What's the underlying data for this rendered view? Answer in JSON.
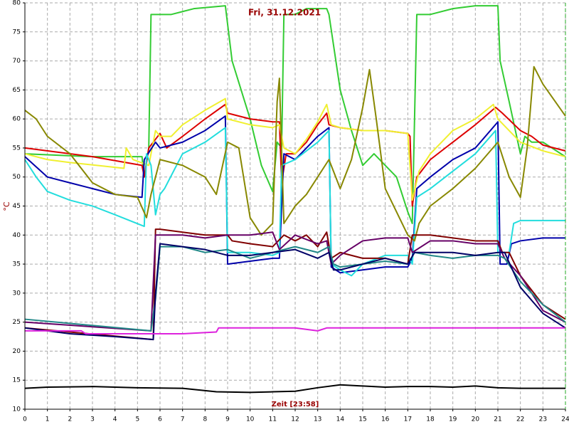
{
  "chart_data": {
    "type": "line",
    "title": "Fri, 31.12.2021",
    "x_label": "Zeit [23:58]",
    "y_label": "°C",
    "xlim": [
      0,
      24
    ],
    "ylim": [
      10,
      80
    ],
    "xticks": [
      0,
      1,
      2,
      3,
      4,
      5,
      6,
      7,
      8,
      9,
      10,
      11,
      12,
      13,
      14,
      15,
      16,
      17,
      18,
      19,
      20,
      21,
      22,
      23,
      24
    ],
    "yticks": [
      10,
      15,
      20,
      25,
      30,
      35,
      40,
      45,
      50,
      55,
      60,
      65,
      70,
      75,
      80
    ],
    "grid": true,
    "series": [
      {
        "color": "#33cc33",
        "x": [
          0,
          3,
          5.2,
          5.3,
          5.5,
          5.6,
          6.5,
          7.5,
          8.9,
          9.2,
          10,
          10.5,
          11,
          11.2,
          11.4,
          11.5,
          12,
          12.5,
          13.4,
          13.5,
          14,
          14.5,
          15,
          15.5,
          16,
          16.5,
          17,
          17.2,
          17.4,
          18,
          19,
          20,
          21,
          21.1,
          21.5,
          22,
          22.2,
          22.5,
          23,
          24
        ],
        "values": [
          54,
          53.5,
          53.5,
          50,
          55,
          78,
          78,
          79,
          79.5,
          70,
          60,
          52,
          47.5,
          56,
          55,
          78,
          78,
          79,
          79,
          78,
          65,
          58,
          52,
          54,
          52,
          50,
          44,
          42,
          78,
          78,
          79,
          79.5,
          79.5,
          70,
          63,
          54,
          57,
          56,
          56,
          53.5
        ]
      },
      {
        "color": "#dd0000",
        "x": [
          0,
          3,
          5.2,
          5.3,
          5.5,
          6,
          6.3,
          7,
          8,
          8.9,
          9,
          10,
          11,
          11.3,
          11.4,
          11.6,
          12,
          12.5,
          13,
          13.4,
          13.5,
          14,
          15,
          16,
          17,
          17.1,
          17.2,
          17.4,
          18,
          19,
          20,
          20.9,
          21.2,
          22,
          22.5,
          23,
          24
        ],
        "values": [
          55,
          53.5,
          52,
          50,
          55,
          57.5,
          55,
          57,
          60,
          62.5,
          61,
          60,
          59.5,
          59.5,
          49,
          54,
          54,
          56,
          59,
          61,
          59,
          58.5,
          58,
          58,
          57.5,
          57,
          45,
          50,
          53,
          56,
          59,
          62,
          61,
          58,
          57,
          55.5,
          54.5
        ]
      },
      {
        "color": "#f0f030",
        "x": [
          0,
          1,
          2,
          4.4,
          4.5,
          4.8,
          5.5,
          5.8,
          6,
          6.5,
          7,
          8,
          8.9,
          9,
          10,
          11,
          11.3,
          11.5,
          12,
          12.5,
          13,
          13.4,
          13.6,
          14,
          15,
          16,
          17,
          17.2,
          17.5,
          18,
          19,
          20,
          20.8,
          21,
          22,
          23,
          24
        ],
        "values": [
          54,
          53,
          52.5,
          51.5,
          55,
          53,
          52,
          58,
          57,
          57,
          59,
          61.5,
          63.5,
          60,
          59,
          58.5,
          59,
          55,
          54,
          56.5,
          59.5,
          62.5,
          59,
          58.5,
          58,
          58,
          57.5,
          46,
          51,
          54,
          58,
          60,
          62.5,
          60,
          56,
          54.5,
          53.5
        ]
      },
      {
        "color": "#0000aa",
        "x": [
          0,
          1,
          2,
          3,
          4,
          5.2,
          5.3,
          5.8,
          6,
          7,
          8,
          8.9,
          9,
          10,
          11,
          11.3,
          11.5,
          12,
          12.5,
          13,
          13.5,
          13.6,
          14,
          15,
          16,
          17,
          17.2,
          17.4,
          18,
          19,
          20,
          21,
          21.1,
          21.4,
          21.6,
          22,
          23,
          24
        ],
        "values": [
          53.5,
          50,
          49,
          48,
          47,
          46.5,
          53,
          56,
          55,
          56,
          58,
          60.5,
          35,
          35.5,
          36,
          36,
          54,
          53,
          55,
          57,
          58.5,
          34.5,
          33.5,
          34,
          34.5,
          34.5,
          36,
          48,
          50,
          53,
          55,
          59.5,
          35,
          35,
          38.5,
          39,
          39.5,
          39.5
        ]
      },
      {
        "color": "#22dddd",
        "x": [
          0,
          0.5,
          1,
          2,
          3,
          4,
          5.3,
          5.4,
          5.6,
          5.8,
          6,
          6.2,
          7,
          8,
          8.9,
          9,
          10,
          11,
          11.3,
          11.4,
          12,
          13,
          13.5,
          13.6,
          14,
          14.5,
          15,
          16,
          17,
          17.2,
          17.4,
          18,
          19,
          20,
          20.9,
          21,
          21.5,
          21.7,
          22,
          24
        ],
        "values": [
          53,
          50,
          47.5,
          46,
          45,
          43.5,
          41.5,
          54,
          52,
          43.5,
          47,
          48,
          54,
          56,
          58.5,
          37,
          37,
          36.5,
          37,
          52,
          53,
          56,
          58,
          35,
          34,
          33,
          35,
          36.5,
          36.5,
          35,
          46.5,
          48,
          51,
          54,
          58,
          37,
          37,
          42,
          42.5,
          42.5
        ]
      },
      {
        "color": "#888800",
        "x": [
          0,
          0.5,
          1,
          2,
          3,
          4,
          5,
          5.4,
          5.6,
          6,
          7,
          8,
          8.5,
          9,
          9.5,
          10,
          10.5,
          11,
          11.2,
          11.3,
          11.5,
          12,
          12.5,
          13,
          13.5,
          14,
          14.5,
          15,
          15.3,
          15.6,
          16,
          16.5,
          17,
          17.3,
          17.5,
          18,
          19,
          20,
          21,
          21.5,
          22,
          22.3,
          22.6,
          23,
          24
        ],
        "values": [
          61.5,
          60,
          57,
          54,
          49,
          47,
          46.5,
          43,
          47,
          53,
          52,
          50,
          47,
          56,
          55,
          43,
          40,
          42,
          63,
          67,
          42,
          45,
          47,
          50,
          53,
          48,
          53,
          62,
          68.5,
          60,
          48,
          44,
          40,
          39,
          42,
          45,
          48,
          51.5,
          56,
          50,
          46.5,
          55,
          69,
          66,
          60.5
        ]
      },
      {
        "color": "#800000",
        "x": [
          0,
          5.7,
          5.8,
          6,
          7,
          8,
          9,
          9.2,
          10,
          11,
          11.5,
          12,
          12.5,
          13,
          13.4,
          13.6,
          14,
          15,
          16,
          17,
          17.2,
          18,
          19,
          20,
          21,
          21.2,
          21.5,
          22,
          23,
          24
        ],
        "values": [
          24,
          22,
          41,
          41,
          40.5,
          40,
          40,
          39,
          38.5,
          38,
          40,
          39,
          40,
          38,
          40.5,
          36,
          37,
          36,
          36,
          35,
          40,
          40,
          39.5,
          39,
          39,
          37,
          37,
          33,
          28,
          25.5
        ]
      },
      {
        "color": "#660066",
        "x": [
          0,
          5.6,
          5.8,
          6,
          7,
          8,
          9,
          10,
          11,
          11.3,
          12,
          13,
          13.4,
          13.6,
          14,
          15,
          16,
          17,
          17.2,
          18,
          19,
          20,
          21,
          21.3,
          22,
          23,
          24
        ],
        "values": [
          25,
          23.5,
          40,
          40,
          40,
          39.5,
          40,
          40,
          40.5,
          37.5,
          40,
          38.5,
          39,
          35,
          36.5,
          39,
          39.5,
          39.5,
          37,
          39,
          39,
          38.5,
          38.5,
          36,
          33,
          27,
          25
        ]
      },
      {
        "color": "#228888",
        "x": [
          0,
          5.6,
          5.8,
          6,
          7,
          8,
          9,
          10,
          11,
          12,
          13,
          13.5,
          13.7,
          14,
          15,
          16,
          17,
          17.3,
          18,
          19,
          20,
          21,
          21.3,
          22,
          23,
          24
        ],
        "values": [
          25.5,
          23.5,
          29,
          38,
          38,
          37,
          37.5,
          36,
          37,
          38,
          37,
          38,
          35,
          34.5,
          35,
          35.5,
          35,
          37,
          36.5,
          36,
          36.5,
          36.5,
          36,
          32,
          28,
          25
        ]
      },
      {
        "color": "#000066",
        "x": [
          0,
          2,
          4,
          5.7,
          5.8,
          6,
          7,
          8,
          9,
          10,
          11,
          12,
          13,
          13.5,
          13.7,
          14,
          15,
          16,
          17,
          17.3,
          18,
          19,
          20,
          21,
          21.3,
          22,
          23,
          24
        ],
        "values": [
          24,
          23,
          22.5,
          22,
          30,
          38.5,
          38,
          37.5,
          36.5,
          36.5,
          37,
          37.5,
          36,
          37,
          34,
          34,
          35,
          36,
          35,
          37,
          37,
          37,
          36.5,
          37,
          37,
          31,
          26.5,
          24
        ]
      },
      {
        "color": "#dd22dd",
        "x": [
          0,
          2.5,
          2.7,
          5.8,
          7,
          8.5,
          8.6,
          12,
          13,
          13.4,
          24
        ],
        "values": [
          23.5,
          23.5,
          23,
          23,
          23,
          23.3,
          24,
          24,
          23.5,
          24,
          24
        ]
      },
      {
        "color": "#000000",
        "x": [
          0,
          1,
          3,
          5,
          7,
          8.5,
          10,
          11,
          12,
          13,
          14,
          15,
          16,
          17,
          18,
          19,
          20,
          21,
          22,
          24
        ],
        "values": [
          13.6,
          13.8,
          13.9,
          13.7,
          13.6,
          13,
          12.9,
          13,
          13.1,
          13.7,
          14.2,
          14,
          13.8,
          13.9,
          13.9,
          13.8,
          14,
          13.7,
          13.6,
          13.6
        ]
      }
    ]
  }
}
